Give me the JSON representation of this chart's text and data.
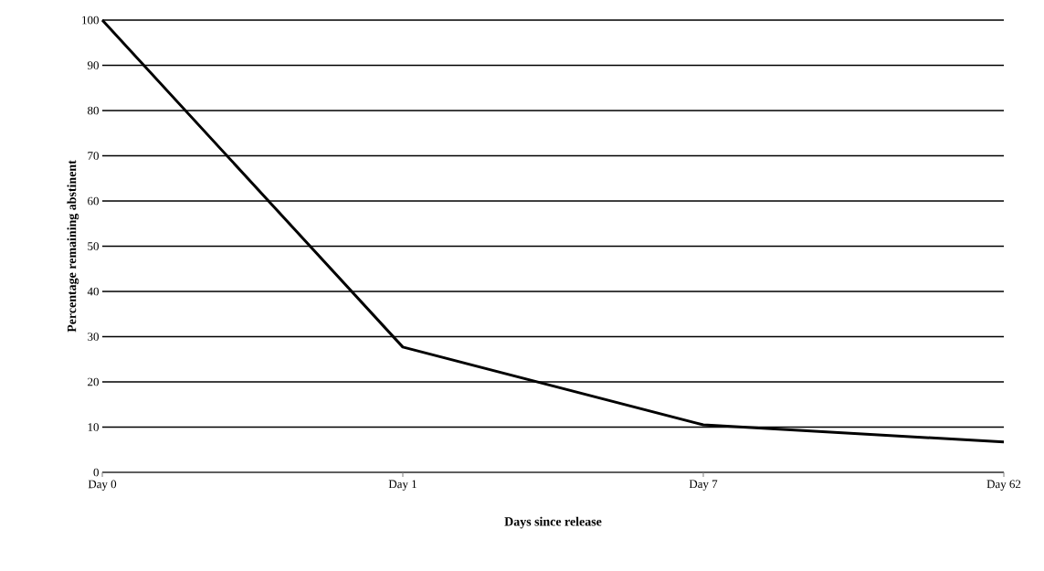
{
  "chart_data": {
    "type": "line",
    "xlabel": "Days since release",
    "ylabel": "Percentage remaining abstinent",
    "categories": [
      "Day 0",
      "Day 1",
      "Day 7",
      "Day 62"
    ],
    "series": [
      {
        "color": "#000000",
        "values": [
          100,
          27.7,
          10.5,
          6.7
        ]
      }
    ],
    "ylim": [
      0,
      100
    ],
    "yticks": [
      0,
      10,
      20,
      30,
      40,
      50,
      60,
      70,
      80,
      90,
      100
    ],
    "grid": "y",
    "marker": "none",
    "line_style": "solid"
  }
}
